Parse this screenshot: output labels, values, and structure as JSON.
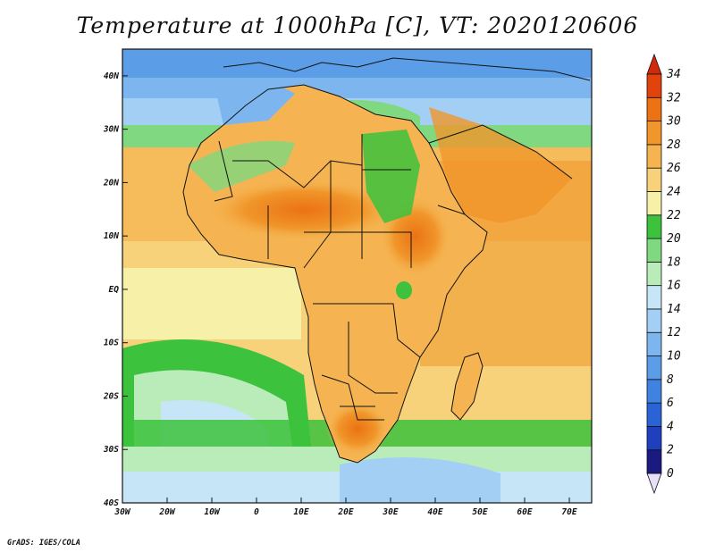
{
  "title": "Temperature at 1000hPa [C], VT: 2020120606",
  "credit": "GrADS: IGES/COLA",
  "map": {
    "lon_range": [
      -30,
      75
    ],
    "lat_range": [
      -40,
      45
    ],
    "lon_ticks": [
      {
        "value": -30,
        "label": "30W"
      },
      {
        "value": -20,
        "label": "20W"
      },
      {
        "value": -10,
        "label": "10W"
      },
      {
        "value": 0,
        "label": "0"
      },
      {
        "value": 10,
        "label": "10E"
      },
      {
        "value": 20,
        "label": "20E"
      },
      {
        "value": 30,
        "label": "30E"
      },
      {
        "value": 40,
        "label": "40E"
      },
      {
        "value": 50,
        "label": "50E"
      },
      {
        "value": 60,
        "label": "60E"
      },
      {
        "value": 70,
        "label": "70E"
      }
    ],
    "lat_ticks": [
      {
        "value": 40,
        "label": "40N"
      },
      {
        "value": 30,
        "label": "30N"
      },
      {
        "value": 20,
        "label": "20N"
      },
      {
        "value": 10,
        "label": "10N"
      },
      {
        "value": 0,
        "label": "EQ"
      },
      {
        "value": -10,
        "label": "10S"
      },
      {
        "value": -20,
        "label": "20S"
      },
      {
        "value": -30,
        "label": "30S"
      },
      {
        "value": -40,
        "label": "40S"
      }
    ]
  },
  "colorbar": {
    "levels": [
      0,
      2,
      4,
      6,
      8,
      10,
      12,
      14,
      16,
      18,
      20,
      22,
      24,
      26,
      28,
      30,
      32,
      34
    ],
    "colors": [
      "#1a1a80",
      "#1f3fbf",
      "#2a63d6",
      "#3f82e0",
      "#5c9de8",
      "#7db6ef",
      "#a3cff5",
      "#c6e6f7",
      "#b9ecb9",
      "#80d880",
      "#3cc23c",
      "#f6f0a8",
      "#f7d27a",
      "#f5b451",
      "#f0962a",
      "#ec7214",
      "#e2430c"
    ],
    "under_color": "#e8e0f8",
    "over_color": "#d12a0a"
  }
}
